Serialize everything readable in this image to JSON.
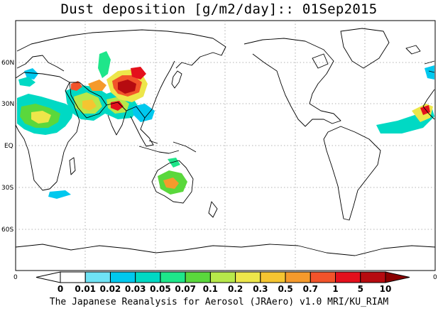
{
  "title": "Dust deposition [g/m2/day]:: 01Sep2015",
  "footer": "The Japanese Reanalysis for Aerosol (JRAero) v1.0 MRI/KU_RIAM",
  "axes": {
    "lat_labels": [
      "60N",
      "30N",
      "EQ",
      "30S",
      "60S"
    ],
    "lon_left_label": "0",
    "lon_right_label": "0"
  },
  "colorbar": {
    "labels": [
      "0",
      "0.01",
      "0.02",
      "0.03",
      "0.05",
      "0.07",
      "0.1",
      "0.2",
      "0.3",
      "0.5",
      "0.7",
      "1",
      "5",
      "10"
    ],
    "colors": [
      "#ffffff",
      "#ffffff",
      "#6fe3f5",
      "#00c8ee",
      "#00d9c4",
      "#1ee68a",
      "#5ad83c",
      "#b7e84a",
      "#ede64a",
      "#f5c531",
      "#f59a2c",
      "#f2532a",
      "#e4101c",
      "#b60b10",
      "#8a0000"
    ]
  },
  "map": {
    "projection": "lat-lon, dateline centered",
    "grid": true,
    "hotspot_regions": [
      "Sahara",
      "Arabian Peninsula",
      "Thar / Indus",
      "Taklimakan",
      "Gobi",
      "Australian interior",
      "Eastern tropical Atlantic"
    ]
  }
}
